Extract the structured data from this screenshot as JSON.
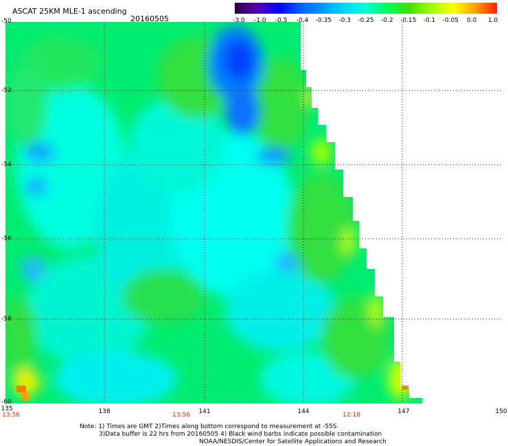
{
  "header": {
    "title": "ASCAT 25KM MLE-1 ascending",
    "date": "20160505"
  },
  "colorbar": {
    "labels": [
      "-3.0",
      "-1.0",
      "-0.5",
      "-0.4",
      "-0.35",
      "-0.3",
      "-0.25",
      "-0.2",
      "-0.15",
      "-0.1",
      "-0.05",
      "0.0",
      "1.0"
    ],
    "colors": [
      "#2a0040",
      "#5a00b0",
      "#0000ff",
      "#0060ff",
      "#0099ff",
      "#00d8ff",
      "#00ffd0",
      "#00ff50",
      "#40e000",
      "#a0ff00",
      "#ffff00",
      "#ffa000",
      "#ff2000"
    ]
  },
  "axes": {
    "y_ticks": [
      "-50",
      "-52",
      "-54",
      "-56",
      "-58",
      "-60"
    ],
    "x_ticks": [
      "135",
      "138",
      "141",
      "144",
      "147",
      "150"
    ],
    "times": [
      "13:56",
      "13:56",
      "12:18"
    ]
  },
  "notes": {
    "line1": "Note: 1) Times are GMT 2)Times along bottom correspond to measurement at -55S",
    "line2": "3)Data buffer is 22 hrs from 20160505 4) Black wind barbs indicate possible contamination",
    "line3": "NOAA/NESDIS/Center for Satellite Applications and Research"
  }
}
